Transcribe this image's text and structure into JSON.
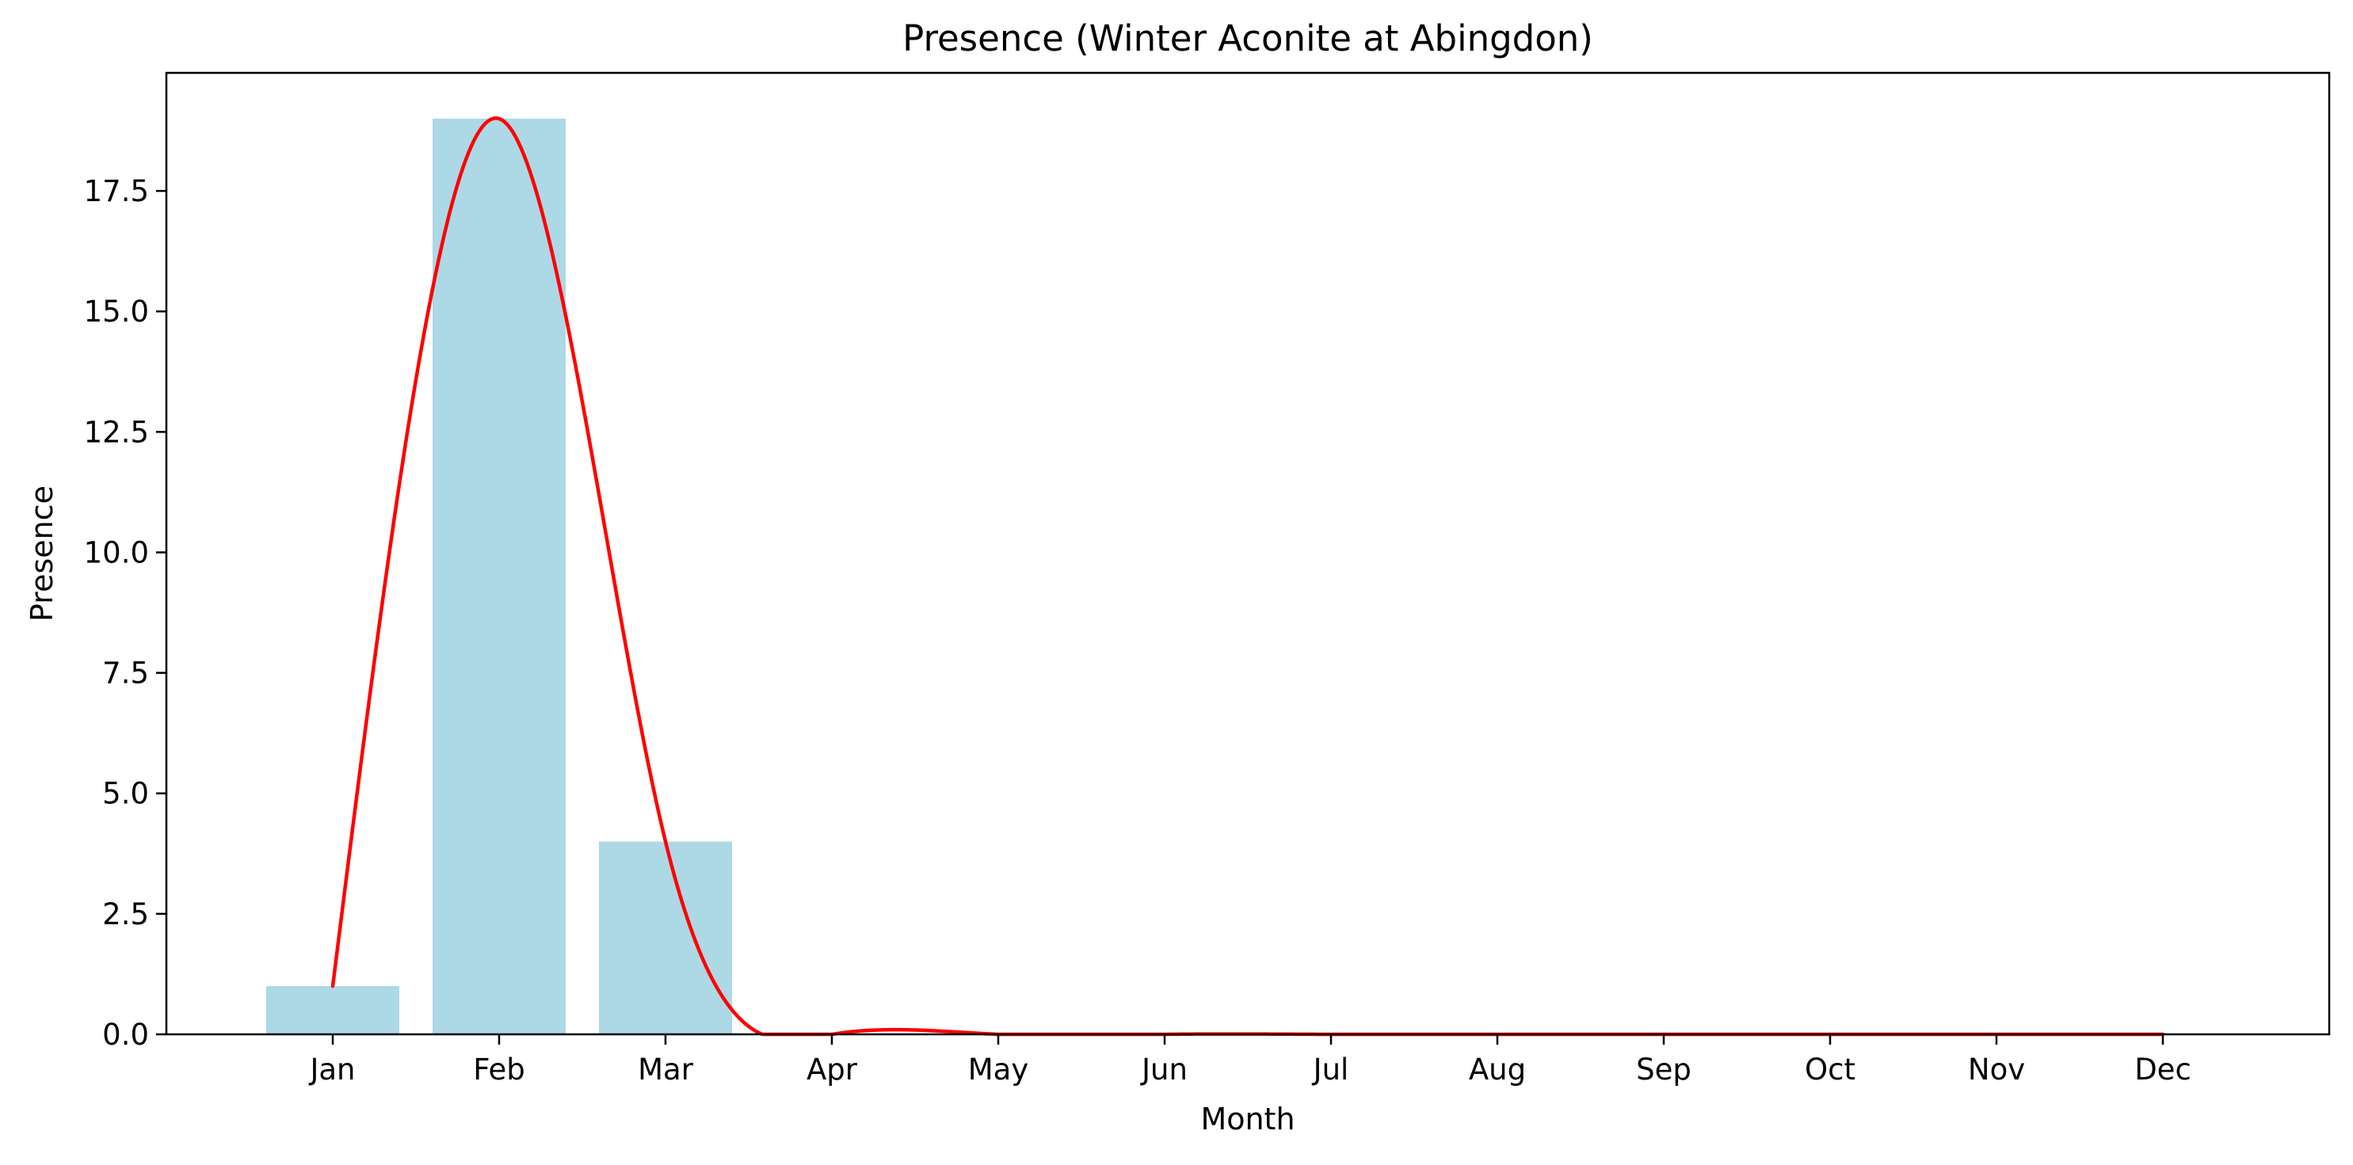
{
  "chart_data": {
    "type": "bar",
    "title": "Presence (Winter Aconite at Abingdon)",
    "xlabel": "Month",
    "ylabel": "Presence",
    "categories": [
      "Jan",
      "Feb",
      "Mar",
      "Apr",
      "May",
      "Jun",
      "Jul",
      "Aug",
      "Sep",
      "Oct",
      "Nov",
      "Dec"
    ],
    "values": [
      1,
      19,
      4,
      0,
      0,
      0,
      0,
      0,
      0,
      0,
      0,
      0
    ],
    "ylim": [
      0,
      19.95
    ],
    "yticks": [
      0.0,
      2.5,
      5.0,
      7.5,
      10.0,
      12.5,
      15.0,
      17.5
    ],
    "ytick_labels": [
      "0.0",
      "2.5",
      "5.0",
      "7.5",
      "10.0",
      "12.5",
      "15.0",
      "17.5"
    ],
    "bar_color": "#add8e6",
    "line_color": "#ff0000",
    "smooth_line": "spline through monthly values, clipped at 0",
    "grid": false,
    "legend": "none"
  }
}
